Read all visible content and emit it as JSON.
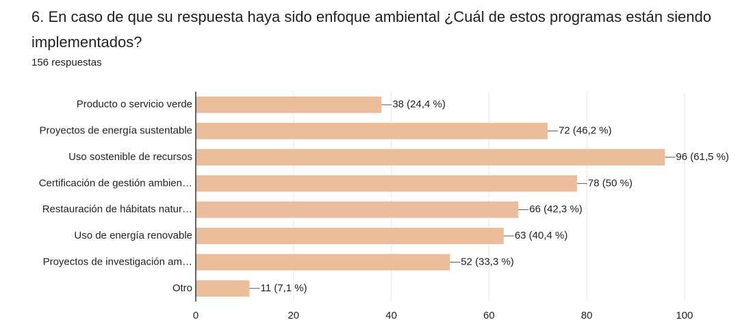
{
  "chart_data": {
    "type": "bar",
    "orientation": "horizontal",
    "title": "6. En caso de que su respuesta haya sido enfoque ambiental ¿Cuál de estos programas están siendo implementados?",
    "subtitle": "156 respuestas",
    "categories": [
      "Producto o servicio verde",
      "Proyectos de energía sustentable",
      "Uso sostenible de recursos",
      "Certificación de gestión ambien…",
      "Restauración de hábitats natur…",
      "Uso de energía renovable",
      "Proyectos de investigación am…",
      "Otro"
    ],
    "values": [
      38,
      72,
      96,
      78,
      66,
      63,
      52,
      11
    ],
    "value_labels": [
      "38 (24,4 %)",
      "72 (46,2 %)",
      "96 (61,5 %)",
      "78 (50 %)",
      "66 (42,3 %)",
      "63 (40,4 %)",
      "52 (33,3 %)",
      "11 (7,1 %)"
    ],
    "color": "#ebbd9b",
    "xlim": [
      0,
      100
    ],
    "xticks": [
      0,
      20,
      40,
      60,
      80,
      100
    ],
    "grid": true
  }
}
